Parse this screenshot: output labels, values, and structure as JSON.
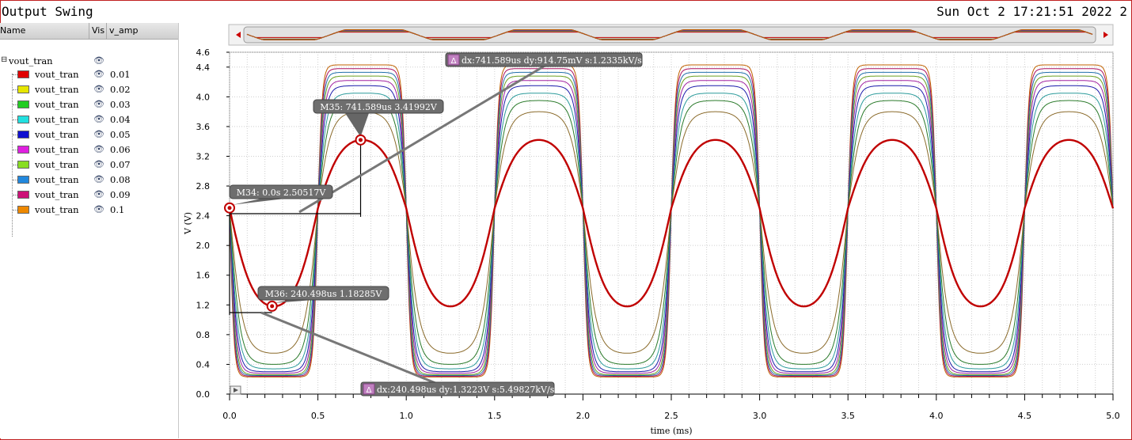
{
  "header": {
    "title": "Output Swing",
    "timestamp": "Sun Oct 2 17:21:51 2022 2"
  },
  "legend_panel": {
    "col_name": "Name",
    "col_vis": "Vis",
    "col_param": "v_amp",
    "group_name": "vout_tran",
    "items": [
      {
        "name": "vout_tran",
        "value": "0.01",
        "color": "#e00000"
      },
      {
        "name": "vout_tran",
        "value": "0.02",
        "color": "#e6e600"
      },
      {
        "name": "vout_tran",
        "value": "0.03",
        "color": "#22cc22"
      },
      {
        "name": "vout_tran",
        "value": "0.04",
        "color": "#22e0e0"
      },
      {
        "name": "vout_tran",
        "value": "0.05",
        "color": "#1010d0"
      },
      {
        "name": "vout_tran",
        "value": "0.06",
        "color": "#e020e0"
      },
      {
        "name": "vout_tran",
        "value": "0.07",
        "color": "#88dd22"
      },
      {
        "name": "vout_tran",
        "value": "0.08",
        "color": "#2288dd"
      },
      {
        "name": "vout_tran",
        "value": "0.09",
        "color": "#cc1177"
      },
      {
        "name": "vout_tran",
        "value": "0.1",
        "color": "#ee8800"
      }
    ]
  },
  "markers": [
    {
      "label": "M34: 0.0s 2.50517V",
      "x": 0.0,
      "y": 2.50517
    },
    {
      "label": "M35: 741.589us 3.41992V",
      "x": 0.741589,
      "y": 3.41992
    },
    {
      "label": "M36: 240.498us 1.18285V",
      "x": 0.240498,
      "y": 1.18285
    }
  ],
  "deltas": [
    {
      "label": "dx:741.589us dy:914.75mV s:1.2335kV/s"
    },
    {
      "label": "dx:240.498us dy:1.3223V s:5.49827kV/s"
    }
  ],
  "chart_data": {
    "type": "line",
    "xlabel": "time (ms)",
    "ylabel": "V (V)",
    "xlim": [
      0.0,
      5.0
    ],
    "ylim": [
      0.0,
      4.6
    ],
    "xticks": [
      "0.0",
      "0.5",
      "1.0",
      "1.5",
      "2.0",
      "2.5",
      "3.0",
      "3.5",
      "4.0",
      "4.5",
      "5.0"
    ],
    "yticks": [
      "0.0",
      "0.4",
      "0.8",
      "1.2",
      "1.6",
      "2.0",
      "2.4",
      "2.8",
      "3.2",
      "3.6",
      "4.0",
      "4.4",
      "4.6"
    ],
    "grid": true,
    "period_ms": 1.0,
    "offset_v": 2.5,
    "series": [
      {
        "name": "0.01",
        "color": "#c00000",
        "peak": 3.42,
        "trough": 1.18,
        "clip_high": 3.42,
        "clip_low": 1.18
      },
      {
        "name": "0.02",
        "color": "#8a6a2a",
        "peak": 3.8,
        "trough": 0.55,
        "clip_high": 3.8,
        "clip_low": 0.55
      },
      {
        "name": "0.03",
        "color": "#2a7a2a",
        "peak": 3.95,
        "trough": 0.4,
        "clip_high": 3.95,
        "clip_low": 0.4
      },
      {
        "name": "0.04",
        "color": "#2a9a9a",
        "peak": 4.05,
        "trough": 0.34,
        "clip_high": 4.05,
        "clip_low": 0.34
      },
      {
        "name": "0.05",
        "color": "#1a1aaa",
        "peak": 4.15,
        "trough": 0.3,
        "clip_high": 4.15,
        "clip_low": 0.3
      },
      {
        "name": "0.06",
        "color": "#a020a0",
        "peak": 4.22,
        "trough": 0.28,
        "clip_high": 4.22,
        "clip_low": 0.28
      },
      {
        "name": "0.07",
        "color": "#6aa020",
        "peak": 4.28,
        "trough": 0.26,
        "clip_high": 4.28,
        "clip_low": 0.26
      },
      {
        "name": "0.08",
        "color": "#2270aa",
        "peak": 4.33,
        "trough": 0.25,
        "clip_high": 4.33,
        "clip_low": 0.25
      },
      {
        "name": "0.09",
        "color": "#aa1060",
        "peak": 4.38,
        "trough": 0.24,
        "clip_high": 4.38,
        "clip_low": 0.24
      },
      {
        "name": "0.1",
        "color": "#c06000",
        "peak": 4.43,
        "trough": 0.23,
        "clip_high": 4.43,
        "clip_low": 0.23
      }
    ]
  }
}
